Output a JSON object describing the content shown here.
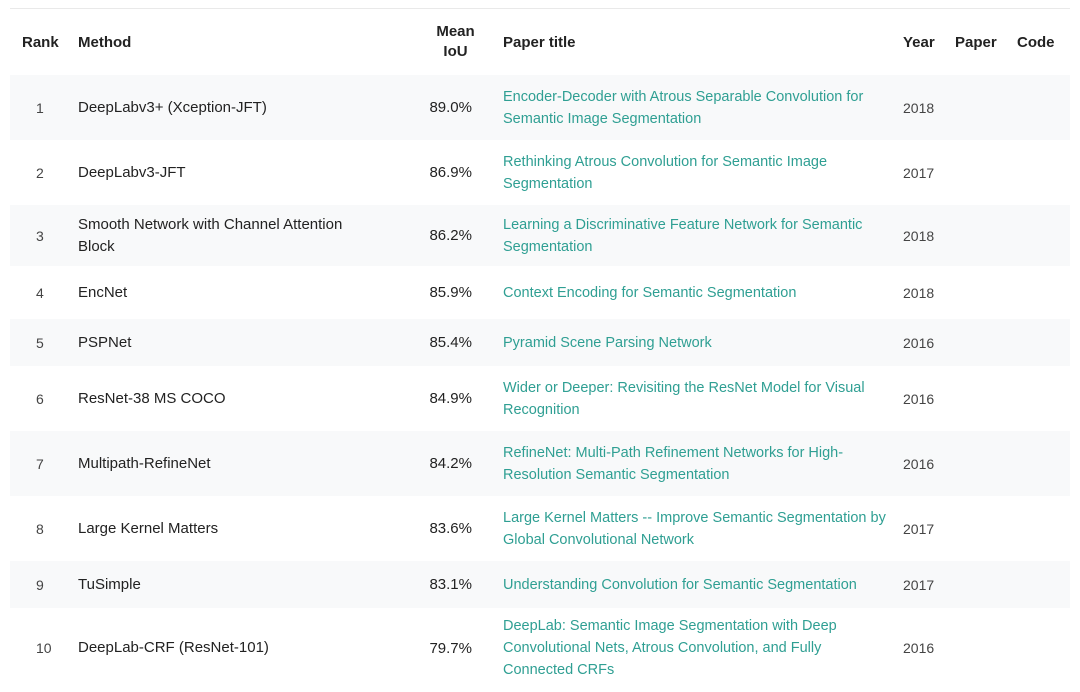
{
  "table": {
    "headers": {
      "rank": "Rank",
      "method": "Method",
      "miou_line1": "Mean",
      "miou_line2": "IoU",
      "paper_title": "Paper title",
      "year": "Year",
      "paper": "Paper",
      "code": "Code"
    },
    "rows": [
      {
        "rank": "1",
        "method": "DeepLabv3+ (Xception-JFT)",
        "miou": "89.0%",
        "title": "Encoder-Decoder with Atrous Separable Convolution for Semantic Image Segmentation",
        "year": "2018"
      },
      {
        "rank": "2",
        "method": "DeepLabv3-JFT",
        "miou": "86.9%",
        "title": "Rethinking Atrous Convolution for Semantic Image Segmentation",
        "year": "2017"
      },
      {
        "rank": "3",
        "method": "Smooth Network with Channel Attention Block",
        "miou": "86.2%",
        "title": "Learning a Discriminative Feature Network for Semantic Segmentation",
        "year": "2018"
      },
      {
        "rank": "4",
        "method": "EncNet",
        "miou": "85.9%",
        "title": "Context Encoding for Semantic Segmentation",
        "year": "2018"
      },
      {
        "rank": "5",
        "method": "PSPNet",
        "miou": "85.4%",
        "title": "Pyramid Scene Parsing Network",
        "year": "2016"
      },
      {
        "rank": "6",
        "method": "ResNet-38 MS COCO",
        "miou": "84.9%",
        "title": "Wider or Deeper: Revisiting the ResNet Model for Visual Recognition",
        "year": "2016"
      },
      {
        "rank": "7",
        "method": "Multipath-RefineNet",
        "miou": "84.2%",
        "title": "RefineNet: Multi-Path Refinement Networks for High-Resolution Semantic Segmentation",
        "year": "2016"
      },
      {
        "rank": "8",
        "method": "Large Kernel Matters",
        "miou": "83.6%",
        "title": "Large Kernel Matters -- Improve Semantic Segmentation by Global Convolutional Network",
        "year": "2017"
      },
      {
        "rank": "9",
        "method": "TuSimple",
        "miou": "83.1%",
        "title": "Understanding Convolution for Semantic Segmentation",
        "year": "2017"
      },
      {
        "rank": "10",
        "method": "DeepLab-CRF (ResNet-101)",
        "miou": "79.7%",
        "title": "DeepLab: Semantic Image Segmentation with Deep Convolutional Nets, Atrous Convolution, and Fully Connected CRFs",
        "year": "2016"
      }
    ]
  },
  "colors": {
    "link": "#2f9f93",
    "row_stripe": "#f8f9fa",
    "text": "#222222"
  }
}
